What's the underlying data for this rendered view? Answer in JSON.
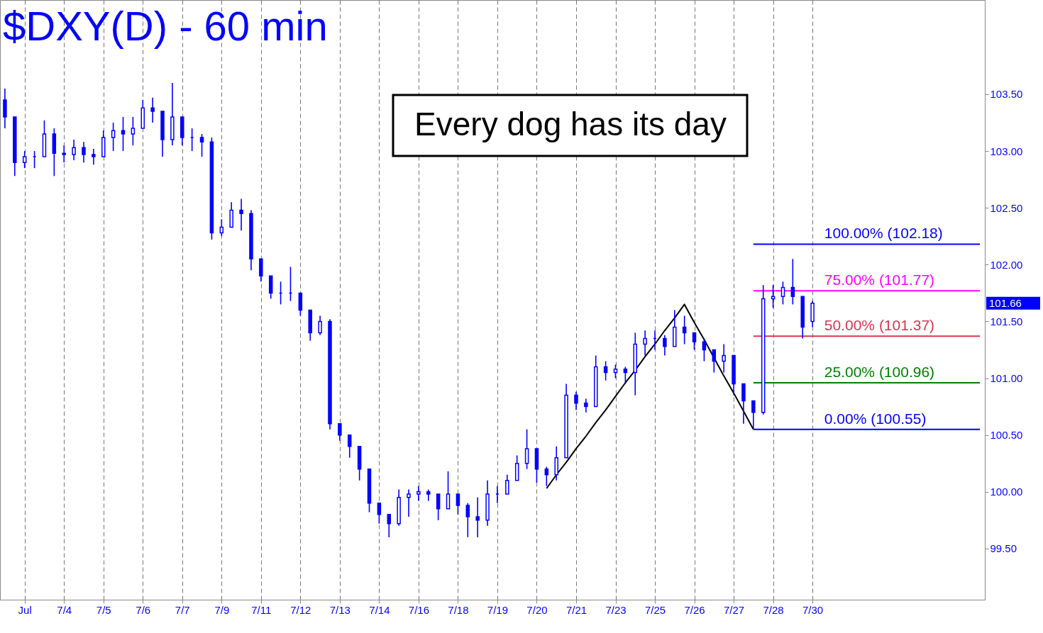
{
  "chart_data": {
    "type": "candlestick",
    "title": "$DXY(D) - 60 min",
    "color": "#0000ff",
    "categories": [
      null,
      null,
      "Jul",
      null,
      null,
      null,
      "7/4",
      null,
      null,
      null,
      "7/5",
      null,
      null,
      null,
      "7/6",
      null,
      null,
      null,
      "7/7",
      null,
      null,
      null,
      "7/9",
      null,
      null,
      null,
      "7/11",
      null,
      null,
      null,
      "7/12",
      null,
      null,
      null,
      "7/13",
      null,
      null,
      null,
      "7/14",
      null,
      null,
      null,
      "7/16",
      null,
      null,
      null,
      "7/18",
      null,
      null,
      null,
      "7/19",
      null,
      null,
      null,
      "7/20",
      null,
      null,
      null,
      "7/21",
      null,
      null,
      null,
      "7/23",
      null,
      null,
      null,
      "7/25",
      null,
      null,
      null,
      "7/26",
      null,
      null,
      null,
      "7/27",
      null,
      null,
      null,
      "7/28",
      null,
      null,
      null,
      "7/30",
      null,
      null,
      null,
      null,
      null,
      null,
      null,
      null,
      null,
      null,
      null,
      null,
      null,
      null,
      null,
      null,
      null
    ],
    "ohlc": [
      [
        103.45,
        103.55,
        103.2,
        103.3
      ],
      [
        103.3,
        103.3,
        102.78,
        102.9
      ],
      [
        102.9,
        103.0,
        102.85,
        102.95
      ],
      [
        102.95,
        103.0,
        102.85,
        102.95
      ],
      [
        102.95,
        103.27,
        102.95,
        103.15
      ],
      [
        103.15,
        103.2,
        102.78,
        102.98
      ],
      [
        102.98,
        103.05,
        102.9,
        102.97
      ],
      [
        102.97,
        103.1,
        102.92,
        103.03
      ],
      [
        103.03,
        103.08,
        102.9,
        102.97
      ],
      [
        102.97,
        103.02,
        102.88,
        102.95
      ],
      [
        102.95,
        103.18,
        102.95,
        103.12
      ],
      [
        103.12,
        103.25,
        103.0,
        103.18
      ],
      [
        103.18,
        103.3,
        103.0,
        103.15
      ],
      [
        103.15,
        103.3,
        103.05,
        103.2
      ],
      [
        103.2,
        103.45,
        103.2,
        103.38
      ],
      [
        103.38,
        103.47,
        103.25,
        103.35
      ],
      [
        103.35,
        103.35,
        102.95,
        103.1
      ],
      [
        103.1,
        103.6,
        103.05,
        103.3
      ],
      [
        103.3,
        103.3,
        103.05,
        103.12
      ],
      [
        103.12,
        103.2,
        103.0,
        103.12
      ],
      [
        103.12,
        103.15,
        102.95,
        103.08
      ],
      [
        103.08,
        103.12,
        102.22,
        102.28
      ],
      [
        102.28,
        102.4,
        102.25,
        102.33
      ],
      [
        102.33,
        102.55,
        102.33,
        102.48
      ],
      [
        102.48,
        102.58,
        102.3,
        102.45
      ],
      [
        102.45,
        102.48,
        101.95,
        102.05
      ],
      [
        102.05,
        102.05,
        101.85,
        101.9
      ],
      [
        101.9,
        101.9,
        101.7,
        101.75
      ],
      [
        101.75,
        101.85,
        101.65,
        101.75
      ],
      [
        101.75,
        101.98,
        101.68,
        101.75
      ],
      [
        101.75,
        101.75,
        101.55,
        101.6
      ],
      [
        101.6,
        101.6,
        101.33,
        101.4
      ],
      [
        101.4,
        101.55,
        101.38,
        101.5
      ],
      [
        101.5,
        101.52,
        100.55,
        100.6
      ],
      [
        100.6,
        100.6,
        100.45,
        100.5
      ],
      [
        100.5,
        100.5,
        100.3,
        100.4
      ],
      [
        100.4,
        100.4,
        100.1,
        100.2
      ],
      [
        100.2,
        100.2,
        99.82,
        99.9
      ],
      [
        99.9,
        99.9,
        99.72,
        99.8
      ],
      [
        99.8,
        99.8,
        99.6,
        99.72
      ],
      [
        99.72,
        100.02,
        99.7,
        99.95
      ],
      [
        99.95,
        100.02,
        99.78,
        99.98
      ],
      [
        99.98,
        100.05,
        99.92,
        100.0
      ],
      [
        100.0,
        100.02,
        99.92,
        99.98
      ],
      [
        99.98,
        99.98,
        99.75,
        99.85
      ],
      [
        99.85,
        100.18,
        99.85,
        99.98
      ],
      [
        99.98,
        99.98,
        99.8,
        99.88
      ],
      [
        99.88,
        99.9,
        99.6,
        99.78
      ],
      [
        99.78,
        99.95,
        99.6,
        99.75
      ],
      [
        99.75,
        100.1,
        99.7,
        99.98
      ],
      [
        99.98,
        100.05,
        99.9,
        99.98
      ],
      [
        99.98,
        100.15,
        99.98,
        100.1
      ],
      [
        100.1,
        100.32,
        100.1,
        100.25
      ],
      [
        100.25,
        100.55,
        100.2,
        100.38
      ],
      [
        100.38,
        100.38,
        100.08,
        100.2
      ],
      [
        100.2,
        100.22,
        100.05,
        100.15
      ],
      [
        100.15,
        100.4,
        100.1,
        100.3
      ],
      [
        100.3,
        100.95,
        100.3,
        100.85
      ],
      [
        100.85,
        100.88,
        100.72,
        100.78
      ],
      [
        100.78,
        100.82,
        100.7,
        100.75
      ],
      [
        100.75,
        101.2,
        100.75,
        101.1
      ],
      [
        101.1,
        101.15,
        100.98,
        101.05
      ],
      [
        101.05,
        101.12,
        101.0,
        101.08
      ],
      [
        101.08,
        101.1,
        100.95,
        101.05
      ],
      [
        101.05,
        101.4,
        100.85,
        101.3
      ],
      [
        101.3,
        101.42,
        101.2,
        101.35
      ],
      [
        101.35,
        101.42,
        101.25,
        101.35
      ],
      [
        101.35,
        101.38,
        101.2,
        101.28
      ],
      [
        101.28,
        101.6,
        101.28,
        101.45
      ],
      [
        101.45,
        101.55,
        101.3,
        101.4
      ],
      [
        101.4,
        101.4,
        101.25,
        101.32
      ],
      [
        101.32,
        101.35,
        101.15,
        101.25
      ],
      [
        101.25,
        101.25,
        101.05,
        101.15
      ],
      [
        101.15,
        101.3,
        101.05,
        101.2
      ],
      [
        101.2,
        101.2,
        100.85,
        100.95
      ],
      [
        100.95,
        100.95,
        100.6,
        100.8
      ],
      [
        100.8,
        100.8,
        100.55,
        100.7
      ],
      [
        100.7,
        101.82,
        100.68,
        101.7
      ],
      [
        101.7,
        101.82,
        101.62,
        101.72
      ],
      [
        101.72,
        101.85,
        101.65,
        101.8
      ],
      [
        101.8,
        102.05,
        101.65,
        101.72
      ],
      [
        101.72,
        101.72,
        101.35,
        101.45
      ],
      [
        101.5,
        101.68,
        101.45,
        101.66
      ],
      null,
      null,
      null,
      null,
      null,
      null,
      null,
      null,
      null,
      null,
      null,
      null,
      null,
      null,
      null,
      null,
      null
    ],
    "series": [
      {
        "type": "line",
        "color": "#000000",
        "values": [
          null,
          null,
          null,
          null,
          null,
          null,
          null,
          null,
          null,
          null,
          null,
          null,
          null,
          null,
          null,
          null,
          null,
          null,
          null,
          null,
          null,
          null,
          null,
          null,
          null,
          null,
          null,
          null,
          null,
          null,
          null,
          null,
          null,
          null,
          null,
          null,
          null,
          null,
          null,
          null,
          null,
          null,
          null,
          null,
          null,
          null,
          null,
          null,
          null,
          null,
          null,
          null,
          null,
          null,
          null,
          100.03,
          100.15,
          100.26,
          100.38,
          100.49,
          100.61,
          100.72,
          100.84,
          100.96,
          101.07,
          101.19,
          101.3,
          101.42,
          101.53,
          101.65,
          101.49,
          101.34,
          101.18,
          101.02,
          100.87,
          100.71,
          100.55,
          null,
          null,
          null,
          null,
          null,
          null,
          null,
          null,
          null,
          null,
          null,
          null,
          null,
          null,
          null,
          null,
          null,
          null,
          null,
          null,
          null,
          null,
          null
        ]
      },
      {
        "type": "line",
        "name": "100.00% (102.18)",
        "color": "#0000ff",
        "values": [
          null,
          null,
          null,
          null,
          null,
          null,
          null,
          null,
          null,
          null,
          null,
          null,
          null,
          null,
          null,
          null,
          null,
          null,
          null,
          null,
          null,
          null,
          null,
          null,
          null,
          null,
          null,
          null,
          null,
          null,
          null,
          null,
          null,
          null,
          null,
          null,
          null,
          null,
          null,
          null,
          null,
          null,
          null,
          null,
          null,
          null,
          null,
          null,
          null,
          null,
          null,
          null,
          null,
          null,
          null,
          null,
          null,
          null,
          null,
          null,
          null,
          null,
          null,
          null,
          null,
          null,
          null,
          null,
          null,
          null,
          null,
          null,
          null,
          null,
          null,
          null,
          102.18,
          102.18,
          102.18,
          102.18,
          102.18,
          102.18,
          102.18,
          102.18,
          102.18,
          102.18,
          102.18,
          102.18,
          102.18,
          102.18,
          102.18,
          102.18,
          102.18,
          102.18,
          102.18,
          102.18,
          102.18,
          102.18,
          102.18,
          102.18
        ]
      },
      {
        "type": "line",
        "name": "75.00% (101.77)",
        "color": "#ff00ff",
        "values": [
          null,
          null,
          null,
          null,
          null,
          null,
          null,
          null,
          null,
          null,
          null,
          null,
          null,
          null,
          null,
          null,
          null,
          null,
          null,
          null,
          null,
          null,
          null,
          null,
          null,
          null,
          null,
          null,
          null,
          null,
          null,
          null,
          null,
          null,
          null,
          null,
          null,
          null,
          null,
          null,
          null,
          null,
          null,
          null,
          null,
          null,
          null,
          null,
          null,
          null,
          null,
          null,
          null,
          null,
          null,
          null,
          null,
          null,
          null,
          null,
          null,
          null,
          null,
          null,
          null,
          null,
          null,
          null,
          null,
          null,
          null,
          null,
          null,
          null,
          null,
          null,
          101.77,
          101.77,
          101.77,
          101.77,
          101.77,
          101.77,
          101.77,
          101.77,
          101.77,
          101.77,
          101.77,
          101.77,
          101.77,
          101.77,
          101.77,
          101.77,
          101.77,
          101.77,
          101.77,
          101.77,
          101.77,
          101.77,
          101.77,
          101.77
        ]
      },
      {
        "type": "line",
        "name": "50.00% (101.37)",
        "color": "#d9364f",
        "values": [
          null,
          null,
          null,
          null,
          null,
          null,
          null,
          null,
          null,
          null,
          null,
          null,
          null,
          null,
          null,
          null,
          null,
          null,
          null,
          null,
          null,
          null,
          null,
          null,
          null,
          null,
          null,
          null,
          null,
          null,
          null,
          null,
          null,
          null,
          null,
          null,
          null,
          null,
          null,
          null,
          null,
          null,
          null,
          null,
          null,
          null,
          null,
          null,
          null,
          null,
          null,
          null,
          null,
          null,
          null,
          null,
          null,
          null,
          null,
          null,
          null,
          null,
          null,
          null,
          null,
          null,
          null,
          null,
          null,
          null,
          null,
          null,
          null,
          null,
          null,
          null,
          101.37,
          101.37,
          101.37,
          101.37,
          101.37,
          101.37,
          101.37,
          101.37,
          101.37,
          101.37,
          101.37,
          101.37,
          101.37,
          101.37,
          101.37,
          101.37,
          101.37,
          101.37,
          101.37,
          101.37,
          101.37,
          101.37,
          101.37,
          101.37
        ]
      },
      {
        "type": "line",
        "name": "25.00% (100.96)",
        "color": "#008000",
        "values": [
          null,
          null,
          null,
          null,
          null,
          null,
          null,
          null,
          null,
          null,
          null,
          null,
          null,
          null,
          null,
          null,
          null,
          null,
          null,
          null,
          null,
          null,
          null,
          null,
          null,
          null,
          null,
          null,
          null,
          null,
          null,
          null,
          null,
          null,
          null,
          null,
          null,
          null,
          null,
          null,
          null,
          null,
          null,
          null,
          null,
          null,
          null,
          null,
          null,
          null,
          null,
          null,
          null,
          null,
          null,
          null,
          null,
          null,
          null,
          null,
          null,
          null,
          null,
          null,
          null,
          null,
          null,
          null,
          null,
          null,
          null,
          null,
          null,
          null,
          null,
          null,
          100.96,
          100.96,
          100.96,
          100.96,
          100.96,
          100.96,
          100.96,
          100.96,
          100.96,
          100.96,
          100.96,
          100.96,
          100.96,
          100.96,
          100.96,
          100.96,
          100.96,
          100.96,
          100.96,
          100.96,
          100.96,
          100.96,
          100.96,
          100.96
        ]
      },
      {
        "type": "line",
        "name": "0.00% (100.55)",
        "color": "#0000ff",
        "values": [
          null,
          null,
          null,
          null,
          null,
          null,
          null,
          null,
          null,
          null,
          null,
          null,
          null,
          null,
          null,
          null,
          null,
          null,
          null,
          null,
          null,
          null,
          null,
          null,
          null,
          null,
          null,
          null,
          null,
          null,
          null,
          null,
          null,
          null,
          null,
          null,
          null,
          null,
          null,
          null,
          null,
          null,
          null,
          null,
          null,
          null,
          null,
          null,
          null,
          null,
          null,
          null,
          null,
          null,
          null,
          null,
          null,
          null,
          null,
          null,
          null,
          null,
          null,
          null,
          null,
          null,
          null,
          null,
          null,
          null,
          null,
          null,
          null,
          null,
          null,
          null,
          100.55,
          100.55,
          100.55,
          100.55,
          100.55,
          100.55,
          100.55,
          100.55,
          100.55,
          100.55,
          100.55,
          100.55,
          100.55,
          100.55,
          100.55,
          100.55,
          100.55,
          100.55,
          100.55,
          100.55,
          100.55,
          100.55,
          100.55,
          100.55
        ]
      }
    ],
    "ylim": [
      99.05,
      104.33
    ],
    "yticks": [
      {
        "value": 99.5,
        "label": "99.50"
      },
      {
        "value": 100,
        "label": "100.00"
      },
      {
        "value": 100.5,
        "label": "100.50"
      },
      {
        "value": 101,
        "label": "101.00"
      },
      {
        "value": 101.5,
        "label": "101.50"
      },
      {
        "value": 102,
        "label": "102.00"
      },
      {
        "value": 102.5,
        "label": "102.50"
      },
      {
        "value": 103,
        "label": "103.00"
      },
      {
        "value": 103.5,
        "label": "103.50"
      }
    ],
    "grid": "x",
    "legend": false,
    "annotations": [
      "Every dog has its day",
      "101.66"
    ]
  }
}
